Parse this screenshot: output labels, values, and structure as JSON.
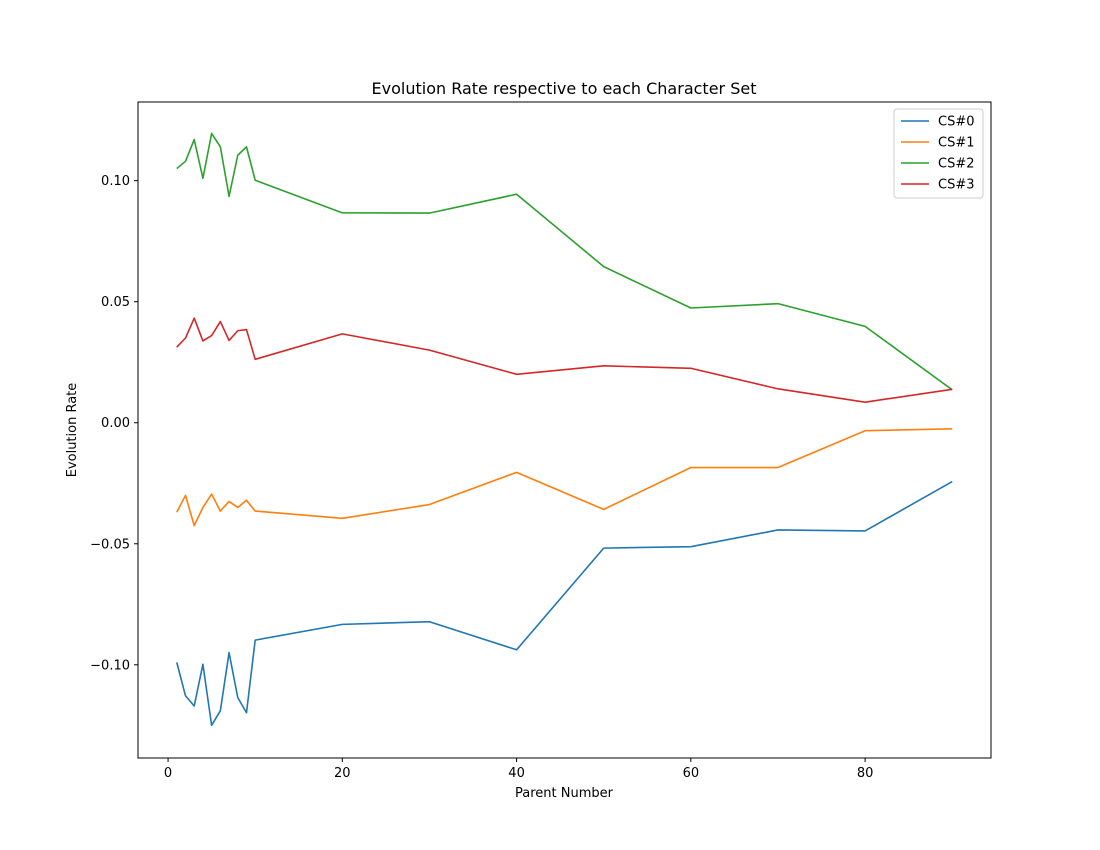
{
  "chart_data": {
    "type": "line",
    "title": "Evolution Rate respective to each Character Set",
    "xlabel": "Parent Number",
    "ylabel": "Evolution Rate",
    "xlim": [
      -3.45,
      94.45
    ],
    "ylim": [
      -0.1385,
      0.1325
    ],
    "xticks": [
      0,
      20,
      40,
      60,
      80
    ],
    "xtick_labels": [
      "0",
      "20",
      "40",
      "60",
      "80"
    ],
    "yticks": [
      -0.1,
      -0.05,
      0.0,
      0.05,
      0.1
    ],
    "ytick_labels": [
      "−0.10",
      "−0.05",
      "0.00",
      "0.05",
      "0.10"
    ],
    "grid": false,
    "legend_position": "top-right",
    "x": [
      1,
      2,
      3,
      4,
      5,
      6,
      7,
      8,
      9,
      10,
      20,
      30,
      40,
      50,
      60,
      70,
      80,
      90
    ],
    "series": [
      {
        "name": "CS#0",
        "color": "#1f77b4",
        "values": [
          -0.099,
          -0.1128,
          -0.117,
          -0.0998,
          -0.125,
          -0.119,
          -0.095,
          -0.1135,
          -0.1198,
          -0.0898,
          -0.0833,
          -0.0822,
          -0.0938,
          -0.0518,
          -0.0512,
          -0.0443,
          -0.0447,
          -0.0243
        ]
      },
      {
        "name": "CS#1",
        "color": "#ff7f0e",
        "values": [
          -0.037,
          -0.03,
          -0.0425,
          -0.035,
          -0.0295,
          -0.0365,
          -0.0325,
          -0.035,
          -0.032,
          -0.0365,
          -0.0395,
          -0.0338,
          -0.0205,
          -0.0358,
          -0.0185,
          -0.0185,
          -0.0033,
          -0.0025
        ]
      },
      {
        "name": "CS#2",
        "color": "#2ca02c",
        "values": [
          0.105,
          0.108,
          0.117,
          0.101,
          0.1195,
          0.114,
          0.0935,
          0.1105,
          0.114,
          0.1002,
          0.0867,
          0.0866,
          0.0944,
          0.0645,
          0.0474,
          0.0492,
          0.0398,
          0.0136
        ]
      },
      {
        "name": "CS#3",
        "color": "#d62728",
        "values": [
          0.0312,
          0.035,
          0.0432,
          0.0338,
          0.036,
          0.0418,
          0.034,
          0.038,
          0.0385,
          0.0262,
          0.0367,
          0.03,
          0.02,
          0.0235,
          0.0225,
          0.014,
          0.0085,
          0.0138
        ]
      }
    ]
  }
}
